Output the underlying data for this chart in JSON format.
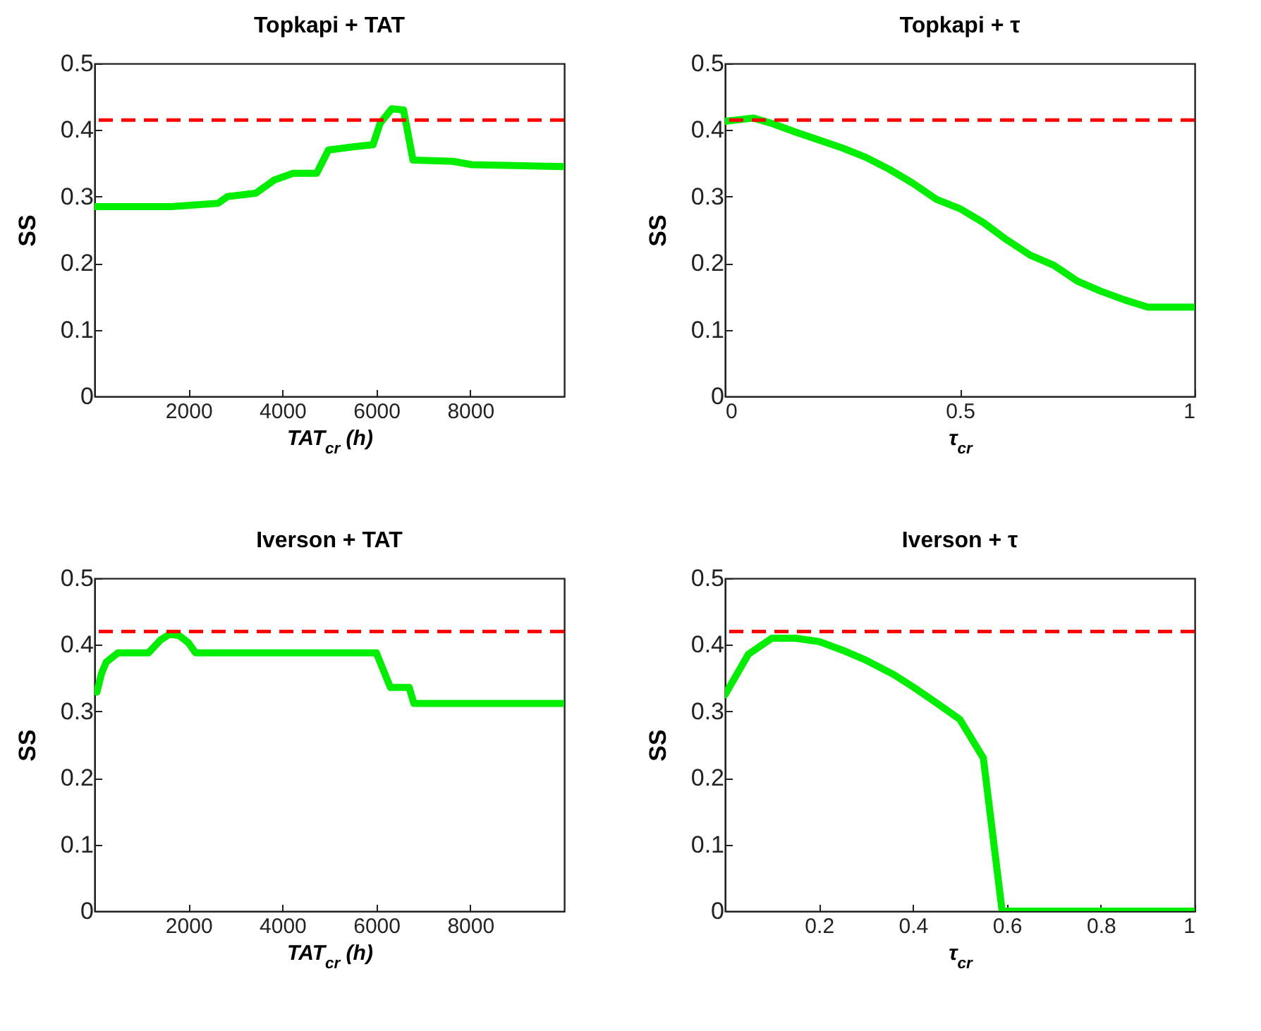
{
  "chart_data": [
    {
      "type": "line",
      "title": "Topkapi + TAT",
      "xlabel": "TAT$_{cr}$ (h)",
      "ylabel": "SS",
      "xlim": [
        0,
        10000
      ],
      "xticks": [
        2000,
        4000,
        6000,
        8000
      ],
      "ylim": [
        0,
        0.5
      ],
      "yticks": [
        0,
        0.1,
        0.2,
        0.3,
        0.4,
        0.5
      ],
      "series": [
        {
          "color": "#00ee00",
          "x": [
            0,
            1630,
            2630,
            2830,
            3430,
            3830,
            4230,
            4730,
            4980,
            5530,
            5930,
            6080,
            6330,
            6580,
            6780,
            7630,
            8030,
            10000
          ],
          "values": [
            0.285,
            0.285,
            0.29,
            0.3,
            0.305,
            0.325,
            0.335,
            0.335,
            0.37,
            0.375,
            0.378,
            0.41,
            0.432,
            0.43,
            0.355,
            0.353,
            0.348,
            0.345
          ]
        }
      ],
      "ref_lines": [
        {
          "axis": "y",
          "value": 0.415,
          "color": "#ff0000",
          "line_style": "dashed"
        }
      ]
    },
    {
      "type": "line",
      "title": "Topkapi + τ",
      "xlabel": "τ$_{cr}$",
      "ylabel": "SS",
      "xlim": [
        0,
        1
      ],
      "xticks": [
        0,
        0.5,
        1
      ],
      "ylim": [
        0,
        0.5
      ],
      "yticks": [
        0,
        0.1,
        0.2,
        0.3,
        0.4,
        0.5
      ],
      "series": [
        {
          "color": "#00ee00",
          "x": [
            0,
            0.06,
            0.1,
            0.15,
            0.2,
            0.25,
            0.3,
            0.35,
            0.4,
            0.45,
            0.5,
            0.55,
            0.6,
            0.65,
            0.7,
            0.75,
            0.8,
            0.85,
            0.9,
            1
          ],
          "values": [
            0.413,
            0.418,
            0.41,
            0.397,
            0.385,
            0.373,
            0.359,
            0.341,
            0.32,
            0.296,
            0.282,
            0.261,
            0.235,
            0.212,
            0.197,
            0.173,
            0.158,
            0.145,
            0.134,
            0.134
          ]
        }
      ],
      "ref_lines": [
        {
          "axis": "y",
          "value": 0.415,
          "color": "#ff0000",
          "line_style": "dashed"
        }
      ]
    },
    {
      "type": "line",
      "title": "Iverson + TAT",
      "xlabel": "TAT$_{cr}$ (h)",
      "ylabel": "SS",
      "xlim": [
        0,
        10000
      ],
      "xticks": [
        2000,
        4000,
        6000,
        8000
      ],
      "ylim": [
        0,
        0.5
      ],
      "yticks": [
        0,
        0.1,
        0.2,
        0.3,
        0.4,
        0.5
      ],
      "series": [
        {
          "color": "#00ee00",
          "x": [
            50,
            150,
            250,
            500,
            1150,
            1400,
            1600,
            1800,
            2000,
            2150,
            6000,
            6150,
            6300,
            6700,
            6800,
            10000
          ],
          "values": [
            0.329,
            0.357,
            0.374,
            0.388,
            0.388,
            0.407,
            0.416,
            0.414,
            0.403,
            0.388,
            0.388,
            0.362,
            0.336,
            0.336,
            0.312,
            0.312
          ]
        }
      ],
      "ref_lines": [
        {
          "axis": "y",
          "value": 0.42,
          "color": "#ff0000",
          "line_style": "dashed"
        }
      ]
    },
    {
      "type": "line",
      "title": "Iverson + τ",
      "xlabel": "τ$_{cr}$",
      "ylabel": "SS",
      "xlim": [
        0,
        1
      ],
      "xticks": [
        0.2,
        0.4,
        0.6,
        0.8,
        1
      ],
      "ylim": [
        0,
        0.5
      ],
      "yticks": [
        0,
        0.1,
        0.2,
        0.3,
        0.4,
        0.5
      ],
      "series": [
        {
          "color": "#00ee00",
          "x": [
            0,
            0.05,
            0.1,
            0.15,
            0.2,
            0.25,
            0.3,
            0.36,
            0.4,
            0.45,
            0.5,
            0.55,
            0.59,
            1
          ],
          "values": [
            0.325,
            0.386,
            0.41,
            0.41,
            0.405,
            0.392,
            0.377,
            0.355,
            0.337,
            0.313,
            0.288,
            0.23,
            0,
            0
          ]
        }
      ],
      "ref_lines": [
        {
          "axis": "y",
          "value": 0.42,
          "color": "#ff0000",
          "line_style": "dashed"
        }
      ]
    }
  ]
}
